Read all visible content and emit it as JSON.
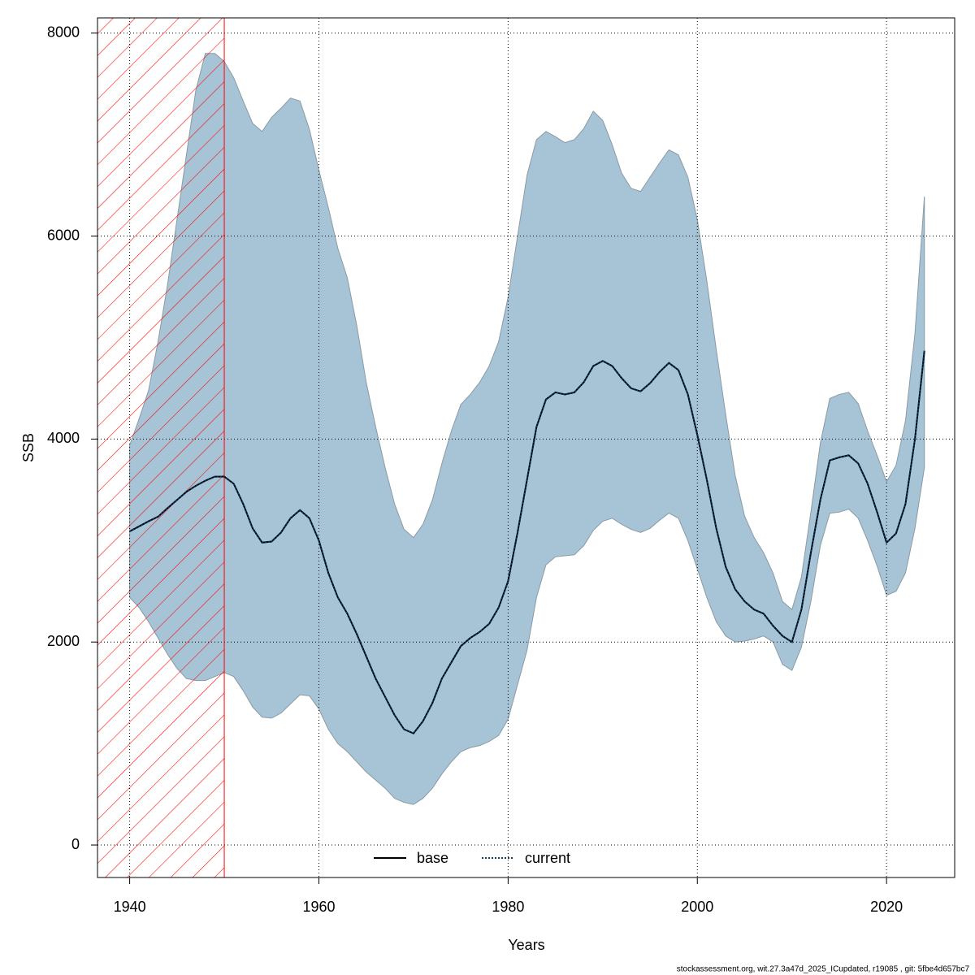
{
  "chart_data": {
    "type": "line",
    "xlabel": "Years",
    "ylabel": "SSB",
    "footer": "stockassessment.org, wit.27.3a47d_2025_ICupdated, r19085 , git: 5fbe4d657bc7",
    "x": [
      1940,
      1941,
      1942,
      1943,
      1944,
      1945,
      1946,
      1947,
      1948,
      1949,
      1950,
      1951,
      1952,
      1953,
      1954,
      1955,
      1956,
      1957,
      1958,
      1959,
      1960,
      1961,
      1962,
      1963,
      1964,
      1965,
      1966,
      1967,
      1968,
      1969,
      1970,
      1971,
      1972,
      1973,
      1974,
      1975,
      1976,
      1977,
      1978,
      1979,
      1980,
      1981,
      1982,
      1983,
      1984,
      1985,
      1986,
      1987,
      1988,
      1989,
      1990,
      1991,
      1992,
      1993,
      1994,
      1995,
      1996,
      1997,
      1998,
      1999,
      2000,
      2001,
      2002,
      2003,
      2004,
      2005,
      2006,
      2007,
      2008,
      2009,
      2010,
      2011,
      2012,
      2013,
      2014,
      2015,
      2016,
      2017,
      2018,
      2019,
      2020,
      2021,
      2022,
      2023,
      2024
    ],
    "series": [
      {
        "name": "base",
        "color": "#000000",
        "dash": "solid",
        "values": [
          3090,
          3140,
          3190,
          3235,
          3320,
          3400,
          3480,
          3540,
          3590,
          3630,
          3630,
          3560,
          3360,
          3120,
          2980,
          2990,
          3080,
          3220,
          3300,
          3220,
          3000,
          2680,
          2440,
          2280,
          2080,
          1860,
          1640,
          1460,
          1280,
          1140,
          1100,
          1220,
          1400,
          1640,
          1800,
          1960,
          2040,
          2100,
          2180,
          2340,
          2600,
          3080,
          3600,
          4120,
          4390,
          4460,
          4440,
          4460,
          4560,
          4720,
          4770,
          4720,
          4600,
          4500,
          4470,
          4550,
          4660,
          4750,
          4680,
          4440,
          4040,
          3600,
          3120,
          2740,
          2520,
          2400,
          2320,
          2280,
          2160,
          2060,
          2000,
          2320,
          2880,
          3400,
          3790,
          3820,
          3840,
          3760,
          3560,
          3280,
          2980,
          3070,
          3360,
          4000,
          4870
        ]
      },
      {
        "name": "current",
        "color": "#0a3a66",
        "dash": "dotted",
        "values": [
          3090,
          3140,
          3190,
          3235,
          3320,
          3400,
          3480,
          3540,
          3590,
          3630,
          3630,
          3560,
          3360,
          3120,
          2980,
          2990,
          3080,
          3220,
          3300,
          3220,
          3000,
          2680,
          2440,
          2280,
          2080,
          1860,
          1640,
          1460,
          1280,
          1140,
          1100,
          1220,
          1400,
          1640,
          1800,
          1960,
          2040,
          2100,
          2180,
          2340,
          2600,
          3080,
          3600,
          4120,
          4390,
          4460,
          4440,
          4460,
          4560,
          4720,
          4770,
          4720,
          4600,
          4500,
          4470,
          4550,
          4660,
          4750,
          4680,
          4440,
          4040,
          3600,
          3120,
          2740,
          2520,
          2400,
          2320,
          2280,
          2160,
          2060,
          2000,
          2320,
          2880,
          3400,
          3790,
          3820,
          3840,
          3760,
          3560,
          3280,
          2980,
          3070,
          3360,
          4000,
          4870
        ]
      }
    ],
    "band": {
      "color": "#a6c4d6",
      "upper": [
        3940,
        4200,
        4480,
        4960,
        5520,
        6160,
        6800,
        7440,
        7800,
        7800,
        7720,
        7560,
        7330,
        7110,
        7030,
        7170,
        7260,
        7360,
        7330,
        7050,
        6650,
        6280,
        5880,
        5590,
        5120,
        4560,
        4120,
        3720,
        3360,
        3110,
        3030,
        3160,
        3400,
        3760,
        4080,
        4340,
        4440,
        4560,
        4720,
        4960,
        5400,
        6000,
        6600,
        6950,
        7030,
        6980,
        6920,
        6950,
        7060,
        7230,
        7140,
        6900,
        6620,
        6470,
        6440,
        6580,
        6720,
        6850,
        6800,
        6580,
        6160,
        5560,
        4880,
        4240,
        3640,
        3240,
        3030,
        2880,
        2680,
        2400,
        2320,
        2640,
        3280,
        3960,
        4400,
        4440,
        4460,
        4350,
        4080,
        3840,
        3580,
        3740,
        4180,
        5040,
        6390
      ],
      "lower": [
        2440,
        2340,
        2200,
        2040,
        1880,
        1740,
        1640,
        1620,
        1620,
        1660,
        1700,
        1660,
        1520,
        1360,
        1260,
        1250,
        1300,
        1390,
        1480,
        1470,
        1340,
        1140,
        1000,
        920,
        820,
        720,
        640,
        560,
        460,
        420,
        400,
        460,
        560,
        700,
        820,
        920,
        960,
        980,
        1020,
        1080,
        1240,
        1580,
        1920,
        2440,
        2760,
        2840,
        2850,
        2860,
        2950,
        3100,
        3190,
        3220,
        3160,
        3110,
        3080,
        3120,
        3200,
        3270,
        3220,
        3000,
        2720,
        2440,
        2200,
        2060,
        2000,
        2010,
        2030,
        2060,
        2000,
        1780,
        1720,
        1950,
        2400,
        2950,
        3270,
        3280,
        3310,
        3220,
        3000,
        2750,
        2460,
        2500,
        2680,
        3120,
        3720
      ]
    },
    "hatched_region": {
      "x": [
        1936.6,
        1950
      ],
      "color": "#ff0000"
    },
    "xlim": [
      1936.6,
      2027.2
    ],
    "ylim": [
      -320,
      8150
    ],
    "xticks": [
      1940,
      1960,
      1980,
      2000,
      2020
    ],
    "yticks": [
      0,
      2000,
      4000,
      6000,
      8000
    ],
    "grid": true,
    "legend": "bottom"
  }
}
